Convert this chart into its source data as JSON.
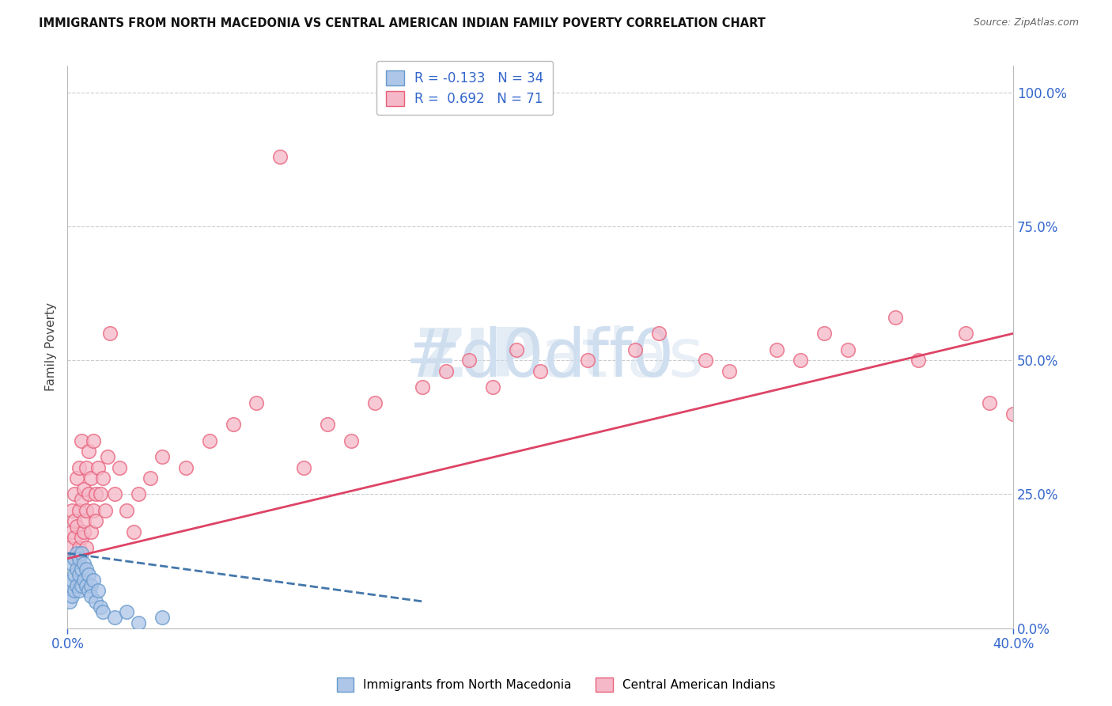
{
  "title": "IMMIGRANTS FROM NORTH MACEDONIA VS CENTRAL AMERICAN INDIAN FAMILY POVERTY CORRELATION CHART",
  "source": "Source: ZipAtlas.com",
  "ylabel": "Family Poverty",
  "xlim": [
    0.0,
    0.4
  ],
  "ylim": [
    0.0,
    1.05
  ],
  "xticks": [
    0.0,
    0.4
  ],
  "xtick_labels": [
    "0.0%",
    "40.0%"
  ],
  "yticks": [
    0.0,
    0.25,
    0.5,
    0.75,
    1.0
  ],
  "ytick_labels": [
    "0.0%",
    "25.0%",
    "50.0%",
    "75.0%",
    "100.0%"
  ],
  "blue_R": -0.133,
  "blue_N": 34,
  "pink_R": 0.692,
  "pink_N": 71,
  "blue_color": "#aec6e8",
  "pink_color": "#f5b8c8",
  "blue_edge_color": "#6699cc",
  "pink_edge_color": "#e8607a",
  "blue_line_color": "#4477aa",
  "pink_line_color": "#dd4466",
  "watermark_color": "#d0dff0",
  "legend_label_blue": "Immigrants from North Macedonia",
  "legend_label_pink": "Central American Indians",
  "blue_x": [
    0.001,
    0.001,
    0.002,
    0.002,
    0.002,
    0.003,
    0.003,
    0.003,
    0.004,
    0.004,
    0.004,
    0.005,
    0.005,
    0.005,
    0.006,
    0.006,
    0.006,
    0.007,
    0.007,
    0.008,
    0.008,
    0.009,
    0.009,
    0.01,
    0.01,
    0.011,
    0.012,
    0.013,
    0.014,
    0.015,
    0.02,
    0.025,
    0.03,
    0.04
  ],
  "blue_y": [
    0.05,
    0.08,
    0.06,
    0.09,
    0.12,
    0.07,
    0.1,
    0.13,
    0.08,
    0.11,
    0.14,
    0.07,
    0.1,
    0.13,
    0.08,
    0.11,
    0.14,
    0.09,
    0.12,
    0.08,
    0.11,
    0.07,
    0.1,
    0.08,
    0.06,
    0.09,
    0.05,
    0.07,
    0.04,
    0.03,
    0.02,
    0.03,
    0.01,
    0.02
  ],
  "pink_x": [
    0.001,
    0.002,
    0.002,
    0.003,
    0.003,
    0.003,
    0.004,
    0.004,
    0.004,
    0.005,
    0.005,
    0.005,
    0.006,
    0.006,
    0.006,
    0.007,
    0.007,
    0.007,
    0.008,
    0.008,
    0.008,
    0.009,
    0.009,
    0.01,
    0.01,
    0.011,
    0.011,
    0.012,
    0.012,
    0.013,
    0.014,
    0.015,
    0.016,
    0.017,
    0.018,
    0.02,
    0.022,
    0.025,
    0.028,
    0.03,
    0.035,
    0.04,
    0.05,
    0.06,
    0.07,
    0.08,
    0.09,
    0.1,
    0.11,
    0.12,
    0.13,
    0.15,
    0.16,
    0.17,
    0.18,
    0.19,
    0.2,
    0.22,
    0.24,
    0.25,
    0.27,
    0.28,
    0.3,
    0.31,
    0.32,
    0.33,
    0.35,
    0.36,
    0.38,
    0.39,
    0.4
  ],
  "pink_y": [
    0.15,
    0.18,
    0.22,
    0.17,
    0.2,
    0.25,
    0.13,
    0.19,
    0.28,
    0.15,
    0.22,
    0.3,
    0.17,
    0.24,
    0.35,
    0.18,
    0.26,
    0.2,
    0.15,
    0.22,
    0.3,
    0.25,
    0.33,
    0.18,
    0.28,
    0.22,
    0.35,
    0.25,
    0.2,
    0.3,
    0.25,
    0.28,
    0.22,
    0.32,
    0.55,
    0.25,
    0.3,
    0.22,
    0.18,
    0.25,
    0.28,
    0.32,
    0.3,
    0.35,
    0.38,
    0.42,
    0.88,
    0.3,
    0.38,
    0.35,
    0.42,
    0.45,
    0.48,
    0.5,
    0.45,
    0.52,
    0.48,
    0.5,
    0.52,
    0.55,
    0.5,
    0.48,
    0.52,
    0.5,
    0.55,
    0.52,
    0.58,
    0.5,
    0.55,
    0.42,
    0.4
  ],
  "pink_line_x0": 0.0,
  "pink_line_x1": 0.4,
  "pink_line_y0": 0.13,
  "pink_line_y1": 0.55,
  "blue_line_x0": 0.0,
  "blue_line_x1": 0.15,
  "blue_line_y0": 0.14,
  "blue_line_y1": 0.05
}
